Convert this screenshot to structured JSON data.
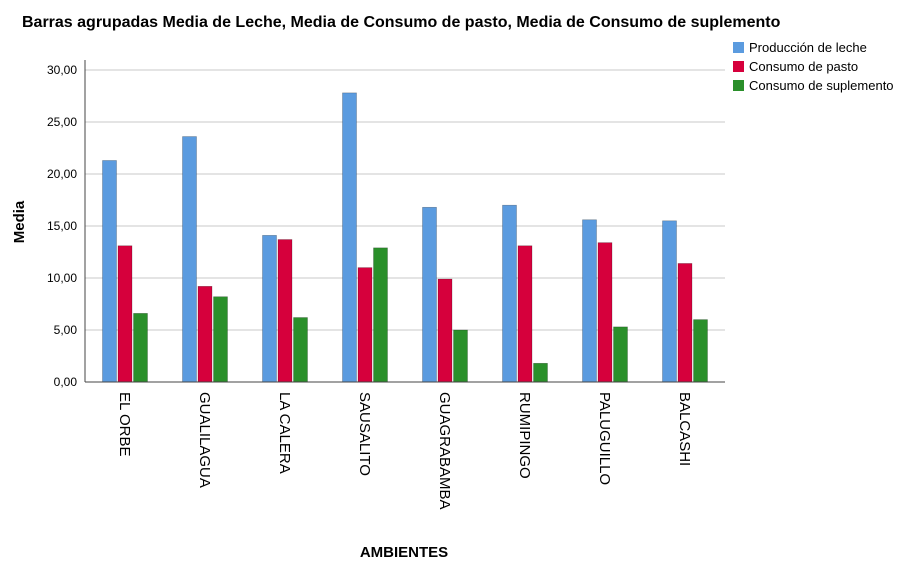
{
  "chart_data": {
    "type": "bar",
    "title": "Barras agrupadas Media de Leche, Media de Consumo de pasto, Media de Consumo de suplemento",
    "xlabel": "AMBIENTES",
    "ylabel": "Media",
    "ylim": [
      0,
      30
    ],
    "yticks": [
      "0,00",
      "5,00",
      "10,00",
      "15,00",
      "20,00",
      "25,00",
      "30,00"
    ],
    "grid": true,
    "legend_position": "top-right",
    "categories": [
      "EL ORBE",
      "GUALILAGUA",
      "LA CALERA",
      "SAUSALITO",
      "GUAGRABAMBA",
      "RUMIPINGO",
      "PALUGUILLO",
      "BALCASHI"
    ],
    "series": [
      {
        "name": "Producción de leche",
        "color": "#5b9bdf",
        "values": [
          21.3,
          23.6,
          14.1,
          27.8,
          16.8,
          17.0,
          15.6,
          15.5
        ]
      },
      {
        "name": "Consumo de pasto",
        "color": "#d6003c",
        "values": [
          13.1,
          9.2,
          13.7,
          11.0,
          9.9,
          13.1,
          13.4,
          11.4
        ]
      },
      {
        "name": "Consumo de suplemento",
        "color": "#2a8f2a",
        "values": [
          6.6,
          8.2,
          6.2,
          12.9,
          5.0,
          1.8,
          5.3,
          6.0
        ]
      }
    ]
  }
}
